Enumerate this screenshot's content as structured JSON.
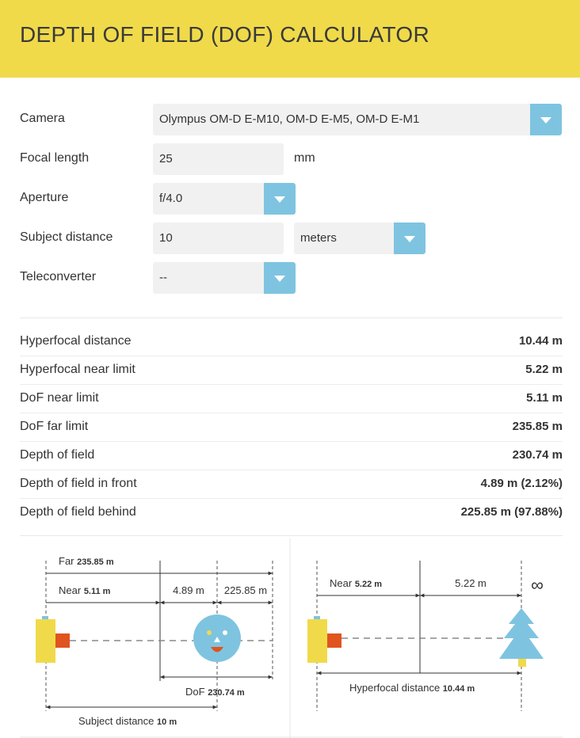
{
  "header": {
    "title": "DEPTH OF FIELD (DOF) CALCULATOR"
  },
  "form": {
    "camera": {
      "label": "Camera",
      "value": "Olympus OM-D E-M10, OM-D E-M5, OM-D E-M1"
    },
    "focal_length": {
      "label": "Focal length",
      "value": "25",
      "unit": "mm"
    },
    "aperture": {
      "label": "Aperture",
      "value": "f/4.0"
    },
    "subject_distance": {
      "label": "Subject distance",
      "value": "10",
      "unit_value": "meters"
    },
    "teleconverter": {
      "label": "Teleconverter",
      "value": "--"
    }
  },
  "results": [
    {
      "label": "Hyperfocal distance",
      "value": "10.44 m"
    },
    {
      "label": "Hyperfocal near limit",
      "value": "5.22 m"
    },
    {
      "label": "DoF near limit",
      "value": "5.11 m"
    },
    {
      "label": "DoF far limit",
      "value": "235.85 m"
    },
    {
      "label": "Depth of field",
      "value": "230.74 m"
    },
    {
      "label": "Depth of field in front",
      "value": "4.89 m (2.12%)"
    },
    {
      "label": "Depth of field behind",
      "value": "225.85 m (97.88%)"
    }
  ],
  "diagram_dof": {
    "far_label": "Far",
    "far_value": "235.85 m",
    "near_label": "Near",
    "near_value": "5.11 m",
    "front_value": "4.89 m",
    "behind_value": "225.85 m",
    "dof_label": "DoF",
    "dof_value": "230.74 m",
    "subject_label": "Subject distance",
    "subject_value": "10 m"
  },
  "diagram_hyperfocal": {
    "near_label": "Near",
    "near_value": "5.22 m",
    "mid_value": "5.22 m",
    "infinity_symbol": "∞",
    "hyperfocal_label": "Hyperfocal distance",
    "hyperfocal_value": "10.44 m"
  },
  "colors": {
    "header_bg": "#f0da4a",
    "accent_blue": "#7ec4e0",
    "camera_yellow": "#f0da4a",
    "lens_orange": "#e0541e"
  },
  "icons": {
    "select_arrow": "chevron-down-icon",
    "camera": "camera-icon",
    "face": "face-icon",
    "tree": "tree-icon"
  }
}
